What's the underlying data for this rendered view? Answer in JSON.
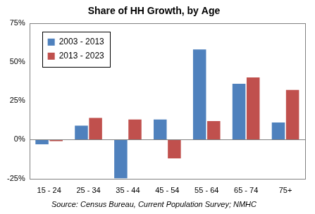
{
  "chart_data": {
    "type": "bar",
    "title": "Share of HH Growth, by Age",
    "source": "Source: Census Bureau, Current Population Survey; NMHC",
    "categories": [
      "15 - 24",
      "25 - 34",
      "35 - 44",
      "45 - 54",
      "55 - 64",
      "65 - 74",
      "75+"
    ],
    "series": [
      {
        "name": "2003 - 2013",
        "color": "#4f81bd",
        "values": [
          -3,
          9,
          -25,
          13,
          58,
          36,
          11
        ]
      },
      {
        "name": "2013 - 2023",
        "color": "#c0504d",
        "values": [
          -1,
          14,
          13,
          -12,
          12,
          40,
          32
        ]
      }
    ],
    "ylim": [
      -25,
      75
    ],
    "yticks": [
      {
        "value": -25,
        "label": "-25%"
      },
      {
        "value": 0,
        "label": "0%"
      },
      {
        "value": 25,
        "label": "25%"
      },
      {
        "value": 50,
        "label": "50%"
      },
      {
        "value": 75,
        "label": "75%"
      }
    ],
    "grid": false,
    "legend": "top-left"
  }
}
